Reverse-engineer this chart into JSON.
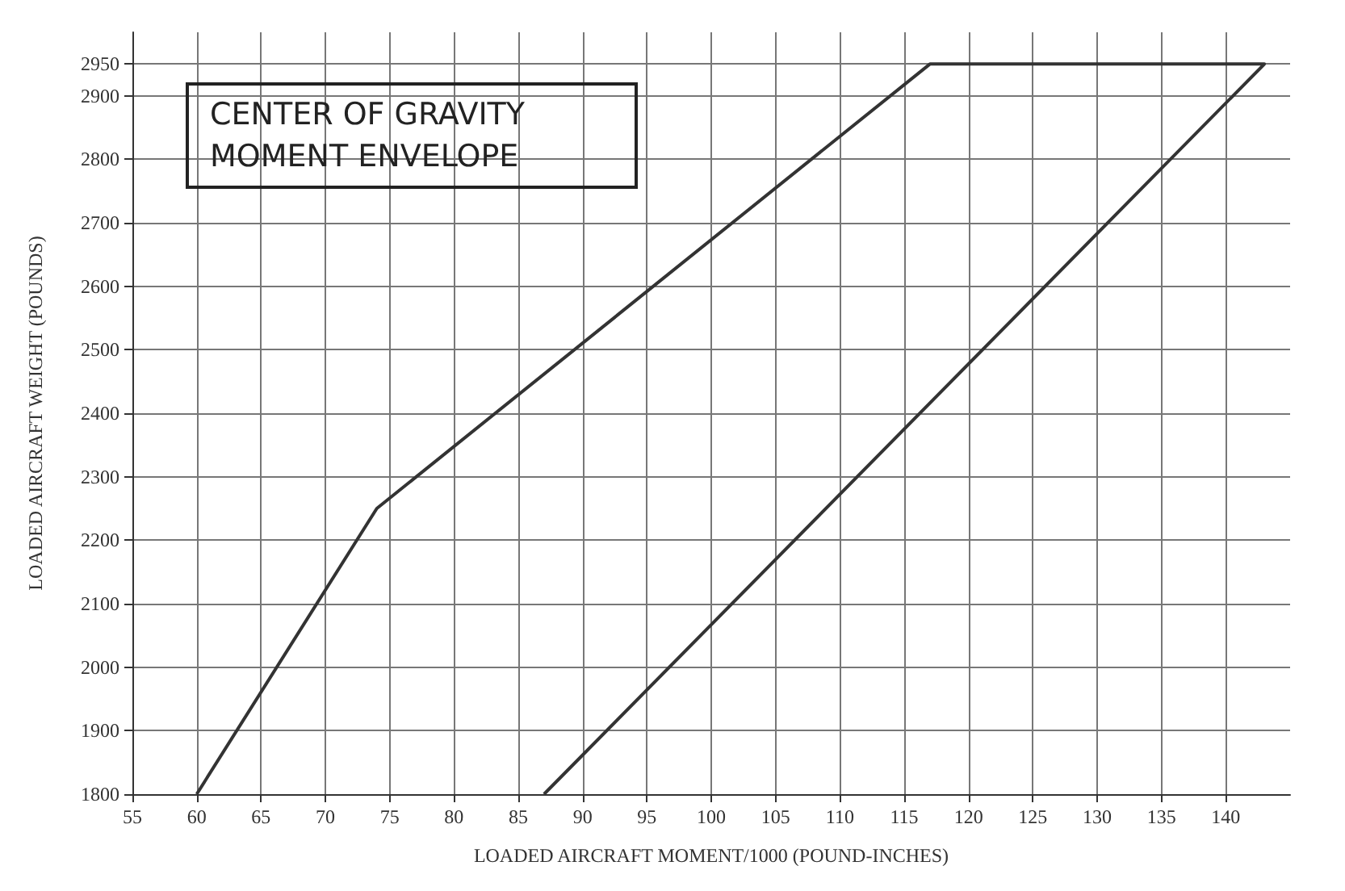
{
  "chart_data": {
    "type": "line",
    "title": "CENTER OF GRAVITY MOMENT ENVELOPE",
    "xlabel": "LOADED AIRCRAFT MOMENT/1000 (POUND-INCHES)",
    "ylabel": "LOADED AIRCRAFT WEIGHT (POUNDS)",
    "series": [
      {
        "color": "#333333",
        "x": [
          60,
          74,
          117,
          143,
          87
        ],
        "values": [
          1800,
          2250,
          2950,
          2950,
          1800
        ]
      }
    ],
    "xlim": [
      55,
      145
    ],
    "xticks": [
      55,
      60,
      65,
      70,
      75,
      80,
      85,
      90,
      95,
      100,
      105,
      110,
      115,
      120,
      125,
      130,
      135,
      140
    ],
    "ylim": [
      1800,
      3000
    ],
    "yticks": [
      1800,
      1900,
      2000,
      2100,
      2200,
      2300,
      2400,
      2500,
      2600,
      2700,
      2800,
      2900,
      2950
    ],
    "grid": true,
    "marker": "none",
    "line_style": "solid"
  }
}
